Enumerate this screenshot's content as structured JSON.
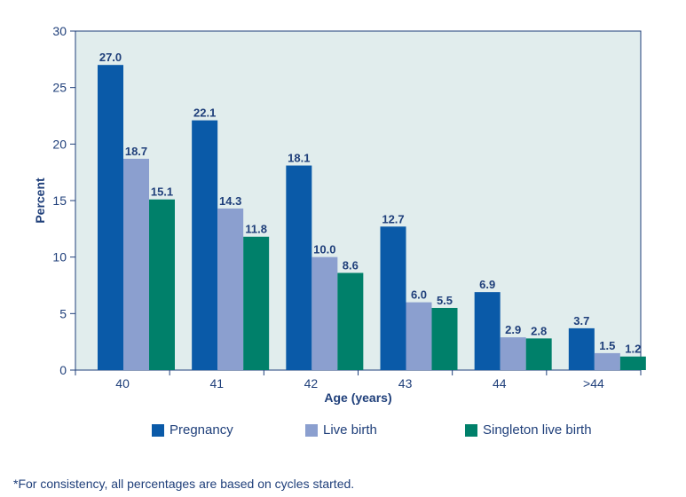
{
  "chart_data": {
    "type": "bar",
    "categories": [
      "40",
      "41",
      "42",
      "43",
      "44",
      ">44"
    ],
    "series": [
      {
        "name": "Pregnancy",
        "values": [
          27.0,
          22.1,
          18.1,
          12.7,
          6.9,
          3.7
        ],
        "color": "#0a5aa8"
      },
      {
        "name": "Live birth",
        "values": [
          18.7,
          14.3,
          10.0,
          6.0,
          2.9,
          1.5
        ],
        "color": "#8b9fcf"
      },
      {
        "name": "Singleton live birth",
        "values": [
          15.1,
          11.8,
          8.6,
          5.5,
          2.8,
          1.2
        ],
        "color": "#00806a"
      }
    ],
    "xlabel": "Age (years)",
    "ylabel": "Percent",
    "ylim": [
      0,
      30
    ],
    "yticks": [
      0,
      5,
      10,
      15,
      20,
      25,
      30
    ],
    "grid": false,
    "legend_position": "bottom",
    "plot_background": "#e1eded",
    "text_color": "#1f3f7a"
  },
  "footnote": "*For consistency, all percentages are based on cycles started."
}
